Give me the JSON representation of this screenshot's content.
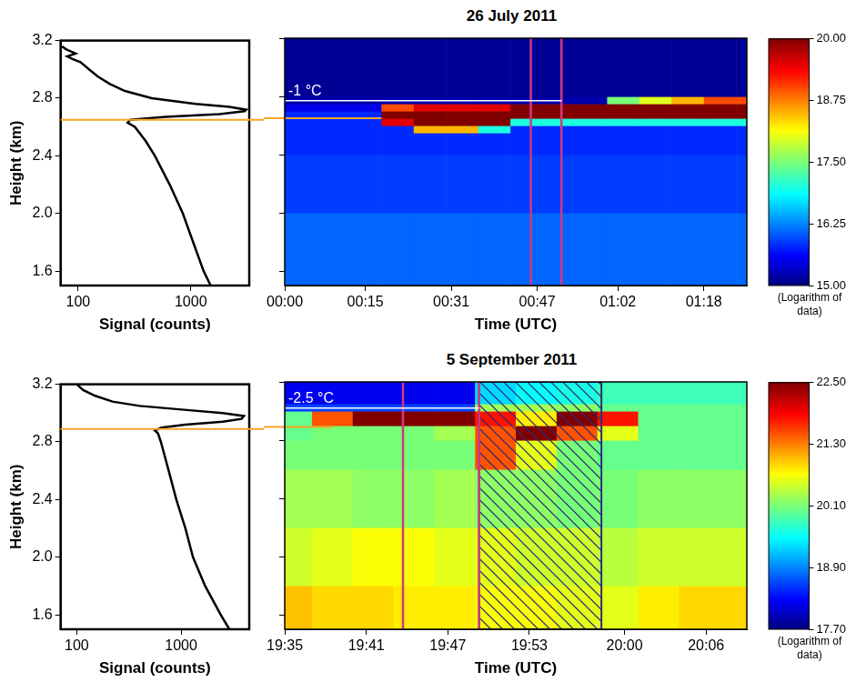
{
  "chart_data": [
    {
      "type": "line",
      "xlabel": "Signal (counts)",
      "ylabel": "Height (km)",
      "log": "x",
      "color": "#000000",
      "x": [
        1500,
        1300,
        1050,
        850,
        650,
        480,
        400,
        320,
        275,
        290,
        600,
        1800,
        3000,
        3100,
        2200,
        1100,
        450,
        260,
        190,
        150,
        125,
        105,
        90,
        80,
        95,
        78,
        72
      ],
      "values": [
        1.5,
        1.6,
        1.8,
        2.0,
        2.2,
        2.4,
        2.5,
        2.6,
        2.63,
        2.65,
        2.67,
        2.69,
        2.71,
        2.72,
        2.74,
        2.76,
        2.8,
        2.85,
        2.9,
        2.95,
        3.0,
        3.05,
        3.07,
        3.09,
        3.11,
        3.14,
        3.16
      ],
      "xlim": [
        70,
        3300
      ],
      "xticks": [
        100,
        1000
      ],
      "ylim": [
        1.5,
        3.2
      ],
      "yticks": [
        1.6,
        {
          "value": 2,
          "label": "2.0"
        },
        2.4,
        2.8,
        3.2
      ]
    },
    {
      "type": "heatmap",
      "title": "26 July 2011",
      "xlabel": "Time (UTC)",
      "tick_labels": "x",
      "xlim": [
        0,
        86
      ],
      "xticks": [
        {
          "value": 0,
          "label": "00:00"
        },
        {
          "value": 15,
          "label": "00:15"
        },
        {
          "value": 31,
          "label": "00:31"
        },
        {
          "value": 47,
          "label": "00:47"
        },
        {
          "value": 62,
          "label": "01:02"
        },
        {
          "value": 78,
          "label": "01:18"
        }
      ],
      "ylim": [
        1.5,
        3.2
      ],
      "yticks": [
        1.6,
        2,
        2.4,
        2.8,
        3.2
      ],
      "x_edges": [
        0,
        6,
        12,
        18,
        24,
        30,
        36,
        42,
        48,
        54,
        60,
        66,
        72,
        78,
        84,
        86
      ],
      "y_edges": [
        1.5,
        2.0,
        2.4,
        2.55,
        2.6,
        2.65,
        2.7,
        2.75,
        2.8,
        3.2
      ],
      "cells": [
        [
          16.1,
          16.1,
          16.1,
          16.1,
          16.1,
          16.1,
          16.1,
          16.1,
          16.1,
          16.1,
          16.1,
          16.1,
          16.1,
          16.1,
          16.1
        ],
        [
          15.9,
          15.9,
          15.9,
          15.9,
          15.9,
          15.9,
          15.9,
          15.9,
          15.9,
          15.9,
          15.9,
          15.9,
          15.9,
          15.9,
          15.9
        ],
        [
          15.8,
          15.8,
          15.8,
          15.8,
          15.8,
          15.8,
          15.8,
          15.8,
          15.8,
          15.8,
          15.8,
          15.8,
          15.8,
          15.8,
          15.8
        ],
        [
          15.8,
          15.8,
          15.8,
          15.8,
          18.5,
          18.5,
          17.0,
          15.8,
          15.8,
          15.8,
          15.8,
          15.8,
          15.8,
          15.8,
          15.8
        ],
        [
          15.8,
          15.8,
          15.8,
          19.5,
          20,
          20,
          20,
          17,
          17,
          17,
          17,
          17,
          17,
          17,
          17
        ],
        [
          15.8,
          15.8,
          15.8,
          20,
          20,
          20,
          20,
          20,
          20,
          20,
          20,
          20,
          20,
          20,
          20
        ],
        [
          15.5,
          15.5,
          15.5,
          19,
          19.5,
          19.5,
          19.5,
          20,
          20,
          20,
          20,
          20,
          20,
          20,
          20
        ],
        [
          15.2,
          15.2,
          15.2,
          15.2,
          15.2,
          15.2,
          15.2,
          15.2,
          15.2,
          15.2,
          17.5,
          18,
          18.5,
          19,
          19
        ],
        [
          15.1,
          15.1,
          15.1,
          15.1,
          15.1,
          15.1,
          15.1,
          15.1,
          15.1,
          15.1,
          15.1,
          15.1,
          15.1,
          15.1,
          15.1
        ]
      ],
      "colorbar": {
        "range": [
          15,
          20
        ],
        "ticks": [
          {
            "value": 15,
            "label": "15.00"
          },
          {
            "value": 16.25,
            "label": "16.25"
          },
          {
            "value": 17.5,
            "label": "17.50"
          },
          {
            "value": 18.75,
            "label": "18.75"
          },
          {
            "value": 20,
            "label": "20.00"
          }
        ],
        "label": "(Logarithm of data)"
      },
      "hlines": [
        {
          "y": 2.77,
          "x": [
            0,
            51.5
          ],
          "label": "-1 °C",
          "color": "#ffffff"
        }
      ],
      "base_line": {
        "y": 2.65,
        "x_end": 18,
        "color": "#f5a623"
      },
      "vlines": [
        {
          "x": 45.8,
          "color": "#d0397f"
        },
        {
          "x": 51.5,
          "color": "#d0397f"
        }
      ]
    },
    {
      "type": "line",
      "xlabel": "Signal (counts)",
      "ylabel": "Height (km)",
      "log": "x",
      "color": "#000000",
      "x": [
        2900,
        2400,
        1700,
        1300,
        1100,
        900,
        760,
        640,
        600,
        560,
        650,
        1100,
        2500,
        3800,
        4000,
        2500,
        1200,
        400,
        220,
        150,
        115,
        100
      ],
      "values": [
        1.5,
        1.6,
        1.8,
        2.0,
        2.2,
        2.4,
        2.6,
        2.8,
        2.86,
        2.88,
        2.9,
        2.92,
        2.94,
        2.96,
        2.98,
        3.0,
        3.02,
        3.05,
        3.08,
        3.12,
        3.16,
        3.2
      ],
      "xlim": [
        70,
        4500
      ],
      "xticks": [
        100,
        1000
      ],
      "ylim": [
        1.5,
        3.2
      ],
      "yticks": [
        1.6,
        {
          "value": 2,
          "label": "2.0"
        },
        2.4,
        2.8,
        3.2
      ]
    },
    {
      "type": "heatmap",
      "title": "5 September 2011",
      "xlabel": "Time (UTC)",
      "tick_labels": "x",
      "xlim": [
        35,
        69
      ],
      "xticks": [
        {
          "value": 35,
          "label": "19:35"
        },
        {
          "value": 41,
          "label": "19:41"
        },
        {
          "value": 47,
          "label": "19:47"
        },
        {
          "value": 53,
          "label": "19:53"
        },
        {
          "value": 60,
          "label": "20:00"
        },
        {
          "value": 66,
          "label": "20:06"
        }
      ],
      "ylim": [
        1.5,
        3.2
      ],
      "yticks": [
        1.6,
        2,
        2.4,
        2.8,
        3.2
      ],
      "x_edges": [
        35,
        37,
        40,
        43,
        46,
        49,
        52,
        55,
        58,
        61,
        64,
        69
      ],
      "y_edges": [
        1.5,
        1.8,
        2.2,
        2.6,
        2.8,
        2.9,
        3.0,
        3.05,
        3.2
      ],
      "cells": [
        [
          21.0,
          20.9,
          20.9,
          20.8,
          20.8,
          20.7,
          20.7,
          20.6,
          20.6,
          20.8,
          20.9
        ],
        [
          20.5,
          20.6,
          20.7,
          20.7,
          20.6,
          20.6,
          20.5,
          20.5,
          20.4,
          20.5,
          20.5
        ],
        [
          20.3,
          20.3,
          20.2,
          20.2,
          20.3,
          20.2,
          20.2,
          20.1,
          20.1,
          20.2,
          20.2
        ],
        [
          20.1,
          20.1,
          20.1,
          20.1,
          20.1,
          21.5,
          20.6,
          20.1,
          20.0,
          20.0,
          20.0
        ],
        [
          20.0,
          20.1,
          20.1,
          20.1,
          20.3,
          21.5,
          22.5,
          21.5,
          20.6,
          20.0,
          20.0
        ],
        [
          20.0,
          21.5,
          22.5,
          22.5,
          22.5,
          21.8,
          20.8,
          22.5,
          21.8,
          20.0,
          20.0
        ],
        [
          18.6,
          18.6,
          18.6,
          18.6,
          18.6,
          20.3,
          20.3,
          20.2,
          20.0,
          20.0,
          20.0
        ],
        [
          18.2,
          18.2,
          18.2,
          18.2,
          18.2,
          19.3,
          19.5,
          19.6,
          19.8,
          19.8,
          19.8
        ]
      ],
      "colorbar": {
        "range": [
          17.7,
          22.5
        ],
        "ticks": [
          {
            "value": 17.7,
            "label": "17.70"
          },
          {
            "value": 18.9,
            "label": "18.90"
          },
          {
            "value": 20.1,
            "label": "20.10"
          },
          {
            "value": 21.3,
            "label": "21.30"
          },
          {
            "value": 22.5,
            "label": "22.50"
          }
        ],
        "label": "(Logarithm of data)"
      },
      "hlines": [
        {
          "y": 3.02,
          "x": [
            35,
            49.3
          ],
          "label": "-2.5 °C",
          "color": "#ffffff"
        }
      ],
      "base_line": {
        "y": 2.89,
        "x_end": 38.5,
        "color": "#f5a623"
      },
      "vlines": [
        {
          "x": 43.7,
          "color": "#d0397f"
        },
        {
          "x": 49.3,
          "color": "#d0397f"
        }
      ],
      "hatched": {
        "x": [
          49.3,
          58.3
        ],
        "color": "#2c2c7a"
      }
    }
  ]
}
